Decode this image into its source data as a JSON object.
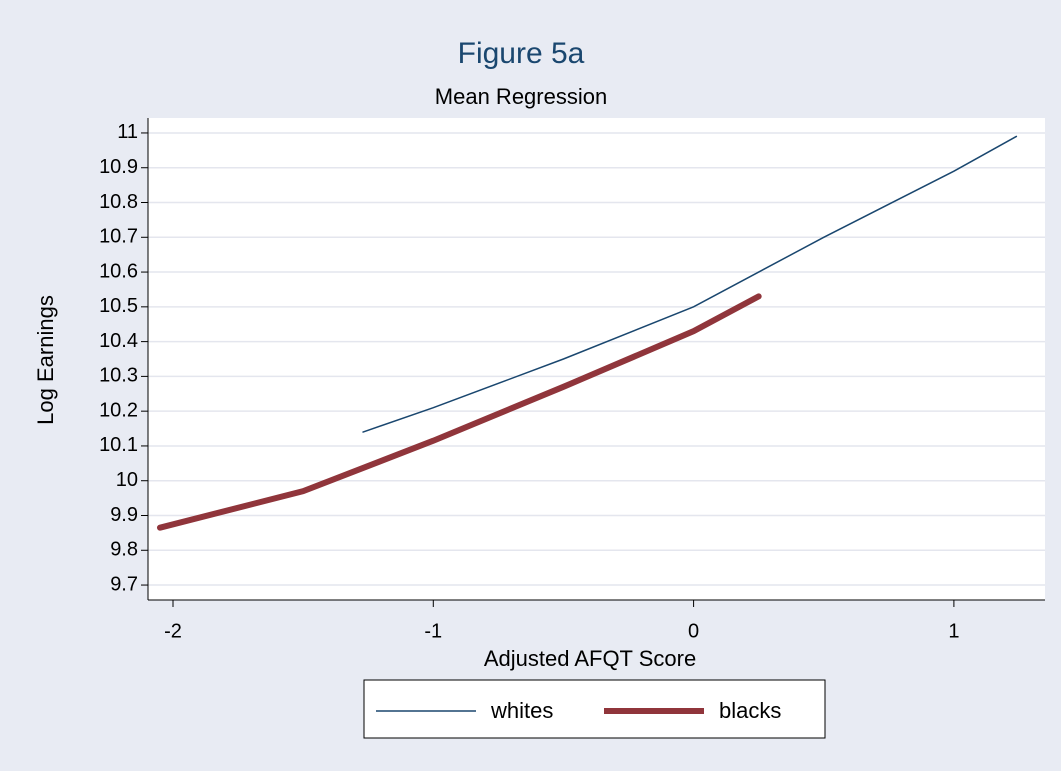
{
  "chart_data": {
    "type": "line",
    "title": "Figure 5a",
    "subtitle": "Mean Regression",
    "xlabel": "Adjusted AFQT Score",
    "ylabel": "Log Earnings",
    "xlim": [
      -2.096,
      1.35
    ],
    "ylim": [
      9.657,
      11.043
    ],
    "xticks": [
      -2,
      -1,
      0,
      1
    ],
    "yticks": [
      9.7,
      9.8,
      9.9,
      10,
      10.1,
      10.2,
      10.3,
      10.4,
      10.5,
      10.6,
      10.7,
      10.8,
      10.9,
      11
    ],
    "grid": true,
    "legend": "bottom",
    "series": [
      {
        "name": "whites",
        "color": "#1a476f",
        "x": [
          -1.27,
          -1,
          -0.5,
          0,
          0.5,
          1,
          1.24
        ],
        "values": [
          10.14,
          10.21,
          10.35,
          10.5,
          10.7,
          10.89,
          10.99
        ]
      },
      {
        "name": "blacks",
        "color": "#90353b",
        "x": [
          -2.05,
          -1.5,
          -1,
          -0.5,
          0,
          0.25
        ],
        "values": [
          9.865,
          9.97,
          10.115,
          10.27,
          10.43,
          10.53
        ]
      }
    ]
  }
}
